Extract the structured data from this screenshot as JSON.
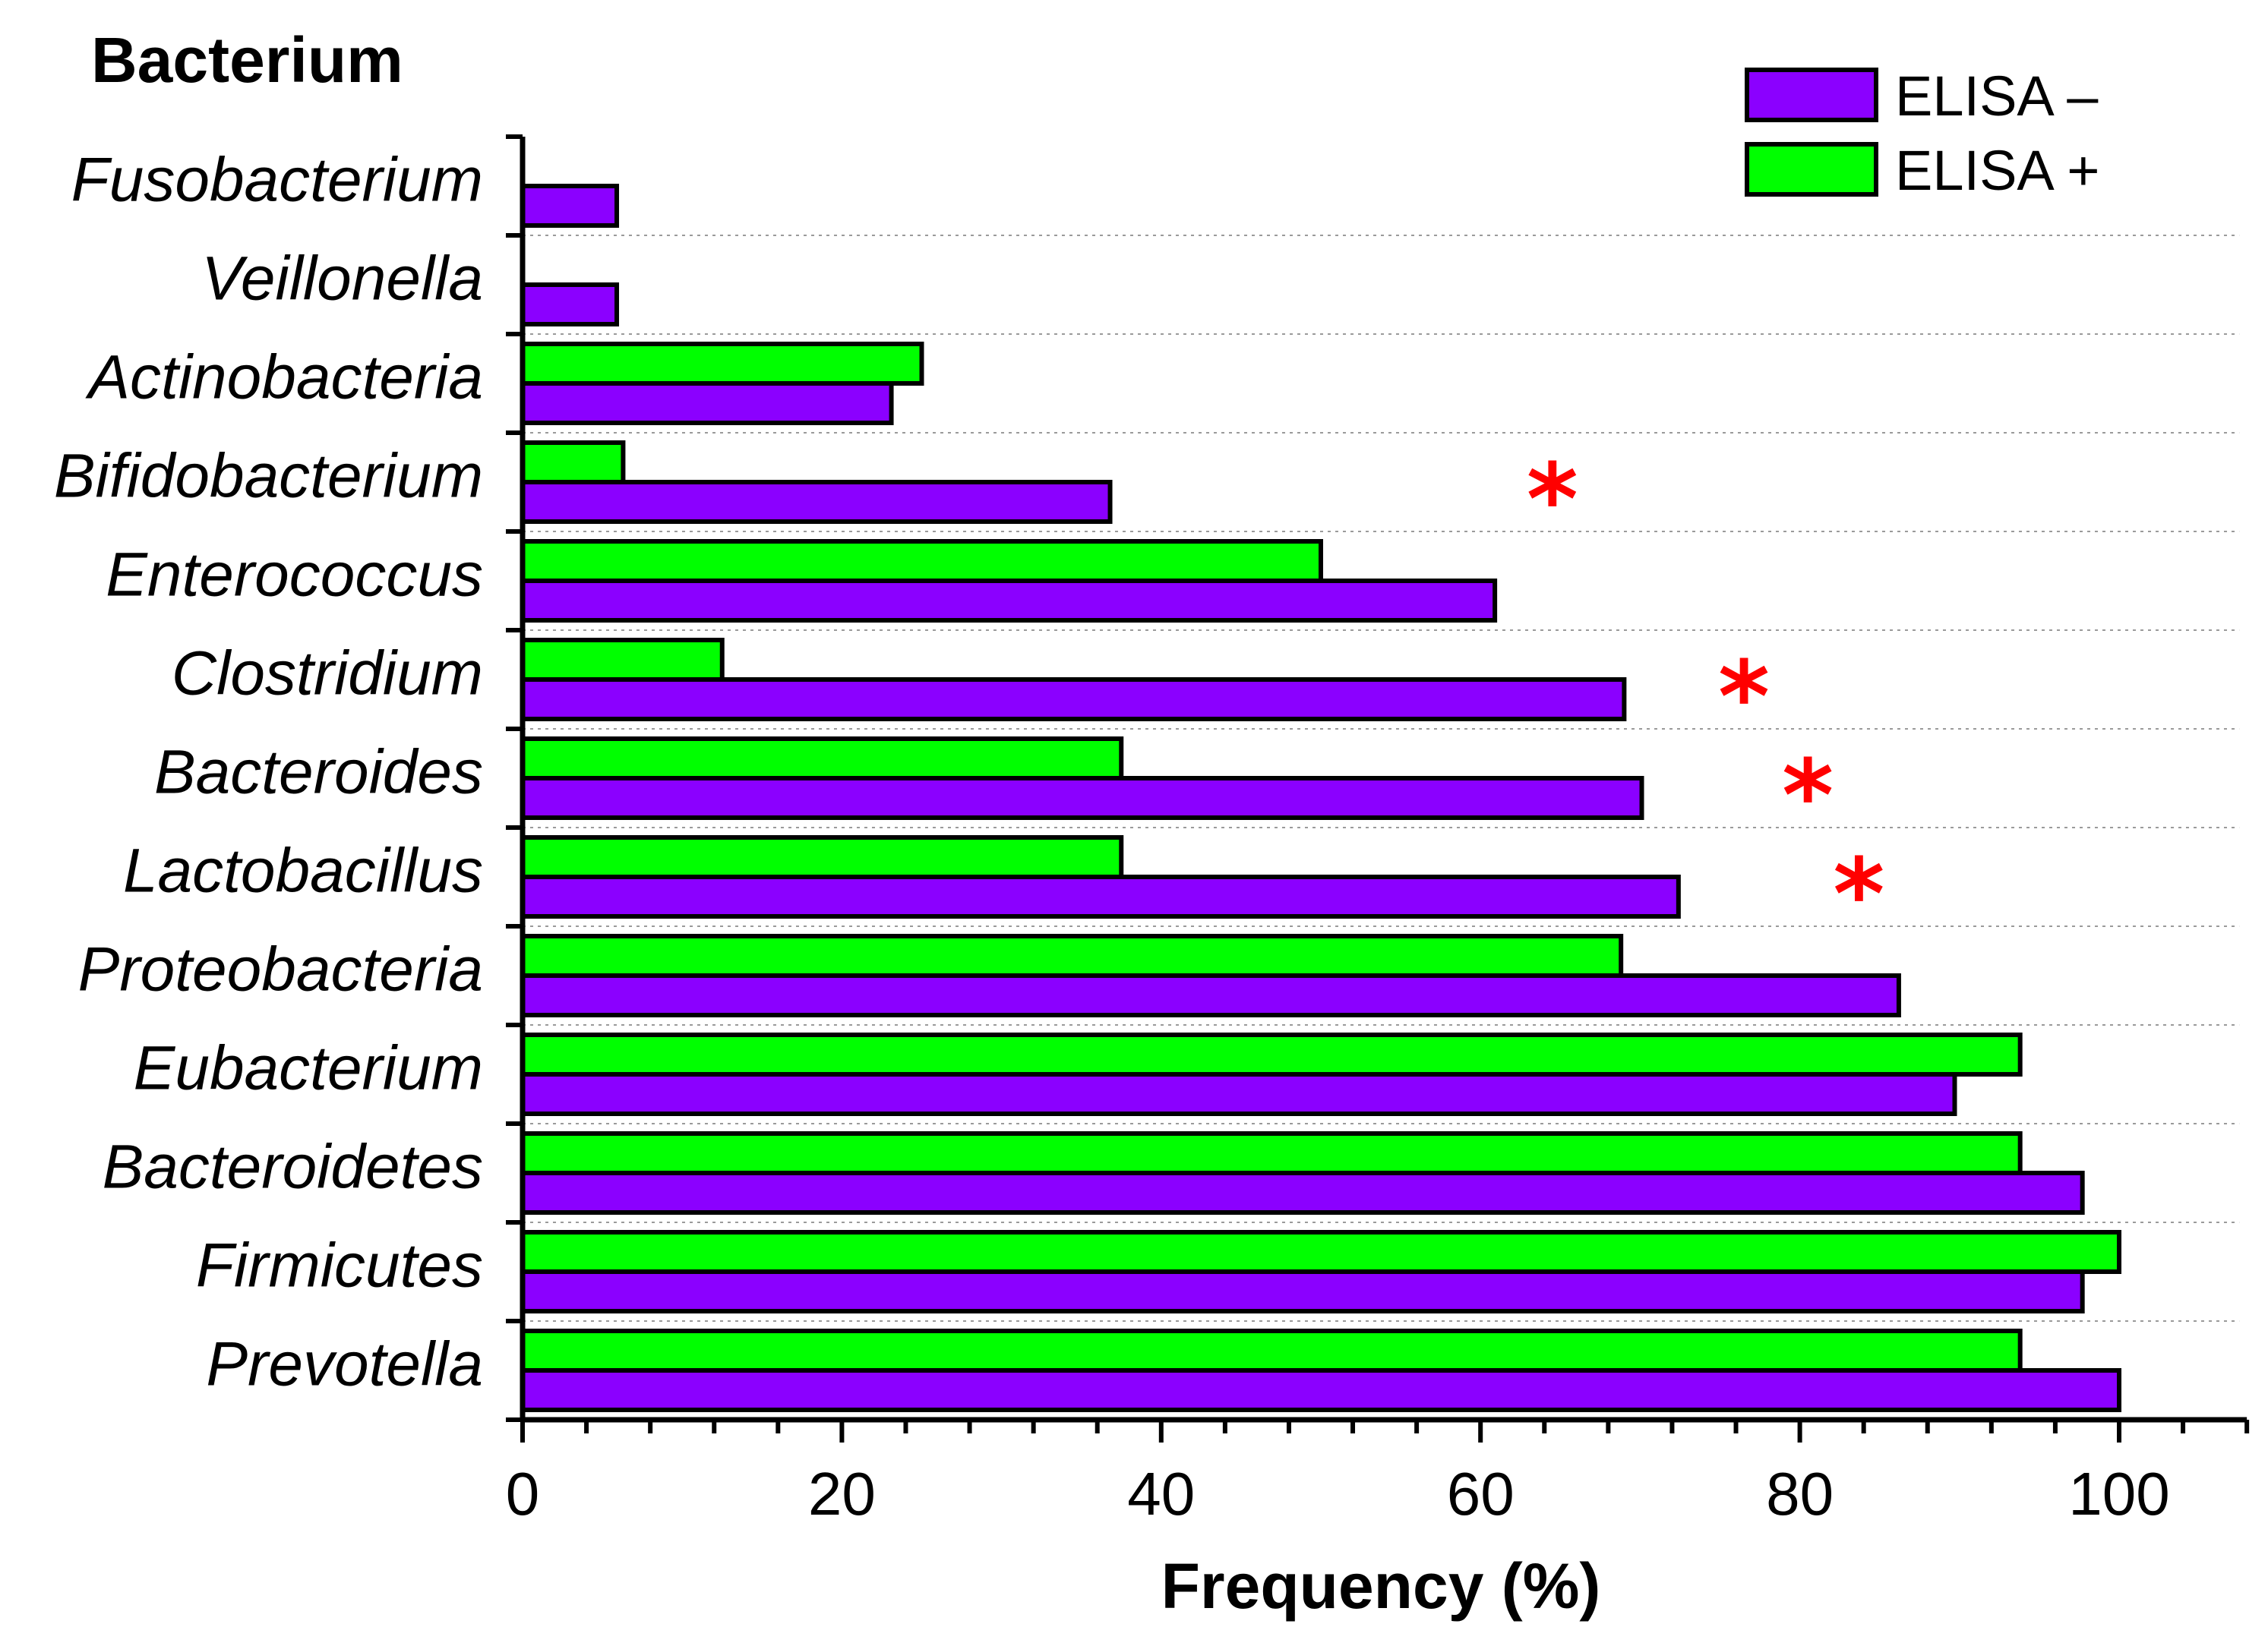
{
  "chart_data": {
    "type": "bar",
    "orientation": "horizontal",
    "ylabel": "Bacterium",
    "xlabel": "Frequency (%)",
    "xlim": [
      0,
      108
    ],
    "xticks": [
      0,
      20,
      40,
      60,
      80,
      100
    ],
    "categories": [
      "Fusobacterium",
      "Veillonella",
      "Actinobacteria",
      "Bifidobacterium",
      "Enterococcus",
      "Clostridium",
      "Bacteroides",
      "Lactobacillus",
      "Proteobacteria",
      "Eubacterium",
      "Bacteroidetes",
      "Firmicutes",
      "Prevotella"
    ],
    "series": [
      {
        "name": "ELISA –",
        "color": "#8b00ff",
        "values": [
          5.9,
          5.9,
          23.1,
          36.8,
          60.9,
          69.0,
          70.1,
          72.4,
          86.2,
          89.7,
          97.7,
          97.7,
          100
        ]
      },
      {
        "name": "ELISA +",
        "color": "#00ff00",
        "values": [
          0,
          0,
          25.0,
          6.3,
          50.0,
          12.5,
          37.5,
          37.5,
          68.8,
          93.8,
          93.8,
          100,
          93.8
        ]
      }
    ],
    "significance": [
      {
        "category": "Bifidobacterium",
        "x": 64.5,
        "symbol": "*"
      },
      {
        "category": "Clostridium",
        "x": 76.5,
        "symbol": "*"
      },
      {
        "category": "Bacteroides",
        "x": 80.5,
        "symbol": "*"
      },
      {
        "category": "Lactobacillus",
        "x": 83.7,
        "symbol": "*"
      }
    ],
    "legend_position": "top-right",
    "grid": "dotted horizontal"
  }
}
